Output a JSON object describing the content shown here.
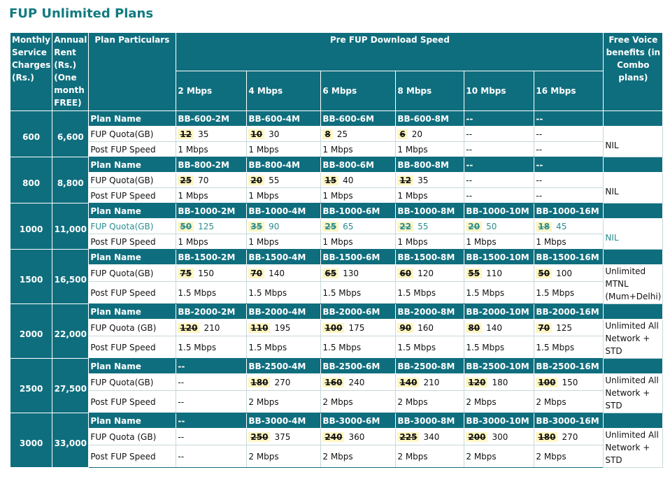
{
  "title": "FUP Unlimited Plans",
  "header": {
    "charges": "Monthly Service Charges (Rs.)",
    "rent": "Annual Rent (Rs.) (One month FREE)",
    "particulars": "Plan Particulars",
    "speed": "Pre FUP Download Speed",
    "speeds": [
      "2 Mbps",
      "4 Mbps",
      "6 Mbps",
      "8 Mbps",
      "10 Mbps",
      "16 Mbps"
    ],
    "voice": "Free Voice benefits (in Combo plans)"
  },
  "groups": [
    {
      "charges": 600,
      "rent": "6,600",
      "plan_label": "Plan Name",
      "plans": [
        "BB-600-2M",
        "BB-600-4M",
        "BB-600-6M",
        "BB-600-8M",
        "--",
        "--"
      ],
      "quota_label": "FUP Quota(GB)",
      "quota": [
        {
          "old": 12,
          "new": 35
        },
        {
          "old": 10,
          "new": 30
        },
        {
          "old": 8,
          "new": 25
        },
        {
          "old": 6,
          "new": 20
        },
        "--",
        "--"
      ],
      "post_label": "Post FUP Speed",
      "post": [
        "1 Mbps",
        "1 Mbps",
        "1 Mbps",
        "1 Mbps",
        "--",
        "--"
      ],
      "voice": "NIL"
    },
    {
      "charges": 800,
      "rent": "8,800",
      "plan_label": "Plan Name",
      "plans": [
        "BB-800-2M",
        "BB-800-4M",
        "BB-800-6M",
        "BB-800-8M",
        "--",
        "--"
      ],
      "quota_label": "FUP Quota(GB)",
      "quota": [
        {
          "old": 25,
          "new": 70
        },
        {
          "old": 20,
          "new": 55
        },
        {
          "old": 15,
          "new": 40
        },
        {
          "old": 12,
          "new": 35
        },
        "--",
        "--"
      ],
      "post_label": "Post FUP Speed",
      "post": [
        "1 Mbps",
        "1 Mbps",
        "1 Mbps",
        "1 Mbps",
        "--",
        "--"
      ],
      "voice": "NIL"
    },
    {
      "charges": 1000,
      "rent": "11,000",
      "plan_label": "Plan Name",
      "plans": [
        "BB-1000-2M",
        "BB-1000-4M",
        "BB-1000-6M",
        "BB-1000-8M",
        "BB-1000-10M",
        "BB-1000-16M"
      ],
      "quota_label": "FUP Quota(GB)",
      "quota": [
        {
          "old": 50,
          "new": 125
        },
        {
          "old": 35,
          "new": 90
        },
        {
          "old": 25,
          "new": 65
        },
        {
          "old": 22,
          "new": 55
        },
        {
          "old": 20,
          "new": 50
        },
        {
          "old": 18,
          "new": 45
        }
      ],
      "post_label": "Post FUP Speed",
      "post": [
        "1 Mbps",
        "1 Mbps",
        "1 Mbps",
        "1 Mbps",
        "1 Mbps",
        "1 Mbps"
      ],
      "voice": "NIL"
    },
    {
      "charges": 1500,
      "rent": "16,500",
      "plan_label": "Plan Name",
      "plans": [
        "BB-1500-2M",
        "BB-1500-4M",
        "BB-1500-6M",
        "BB-1500-8M",
        "BB-1500-10M",
        "BB-1500-16M"
      ],
      "quota_label": "FUP Quota(GB)",
      "quota": [
        {
          "old": 75,
          "new": 150
        },
        {
          "old": 70,
          "new": 140
        },
        {
          "old": 65,
          "new": 130
        },
        {
          "old": 60,
          "new": 120
        },
        {
          "old": 55,
          "new": 110
        },
        {
          "old": 50,
          "new": 100
        }
      ],
      "post_label": "Post FUP Speed",
      "post": [
        "1.5 Mbps",
        "1.5 Mbps",
        "1.5 Mbps",
        "1.5 Mbps",
        "1.5 Mbps",
        "1.5 Mbps"
      ],
      "voice": "Unlimited MTNL (Mum+Delhi)"
    },
    {
      "charges": 2000,
      "rent": "22,000",
      "plan_label": "Plan Name",
      "plans": [
        "BB-2000-2M",
        "BB-2000-4M",
        "BB-2000-6M",
        "BB-2000-8M",
        "BB-2000-10M",
        "BB-2000-16M"
      ],
      "quota_label": "FUP Quota (GB)",
      "quota": [
        {
          "old": 120,
          "new": 210
        },
        {
          "old": 110,
          "new": 195
        },
        {
          "old": 100,
          "new": 175
        },
        {
          "old": 90,
          "new": 160
        },
        {
          "old": 80,
          "new": 140
        },
        {
          "old": 70,
          "new": 125
        }
      ],
      "post_label": "Post FUP Speed",
      "post": [
        "1.5 Mbps",
        "1.5 Mbps",
        "1.5 Mbps",
        "1.5 Mbps",
        "1.5 Mbps",
        "1.5 Mbps"
      ],
      "voice": "Unlimited All Network + STD"
    },
    {
      "charges": 2500,
      "rent": "27,500",
      "plan_label": "Plan Name",
      "plans": [
        "--",
        "BB-2500-4M",
        "BB-2500-6M",
        "BB-2500-8M",
        "BB-2500-10M",
        "BB-2500-16M"
      ],
      "quota_label": "FUP Quota(GB)",
      "quota": [
        "--",
        {
          "old": 180,
          "new": 270
        },
        {
          "old": 160,
          "new": 240
        },
        {
          "old": 140,
          "new": 210
        },
        {
          "old": 120,
          "new": 180
        },
        {
          "old": 100,
          "new": 150
        }
      ],
      "post_label": "Post FUP Speed",
      "post": [
        "--",
        "2 Mbps",
        "2 Mbps",
        "2 Mbps",
        "2 Mbps",
        "2 Mbps"
      ],
      "voice": "Unlimited All Network + STD"
    },
    {
      "charges": 3000,
      "rent": "33,000",
      "plan_label": "Plan Name",
      "plans": [
        "--",
        "BB-3000-4M",
        "BB-3000-6M",
        "BB-3000-8M",
        "BB-3000-10M",
        "BB-3000-16M"
      ],
      "quota_label": "FUP Quota (GB)",
      "quota": [
        "--",
        {
          "old": 250,
          "new": 375
        },
        {
          "old": 240,
          "new": 360
        },
        {
          "old": 225,
          "new": 340
        },
        {
          "old": 200,
          "new": 300
        },
        {
          "old": 180,
          "new": 270
        }
      ],
      "post_label": "Post FUP Speed",
      "post": [
        "--",
        "2 Mbps",
        "2 Mbps",
        "2 Mbps",
        "2 Mbps",
        "2 Mbps"
      ],
      "voice": "Unlimited All Network + STD"
    }
  ]
}
